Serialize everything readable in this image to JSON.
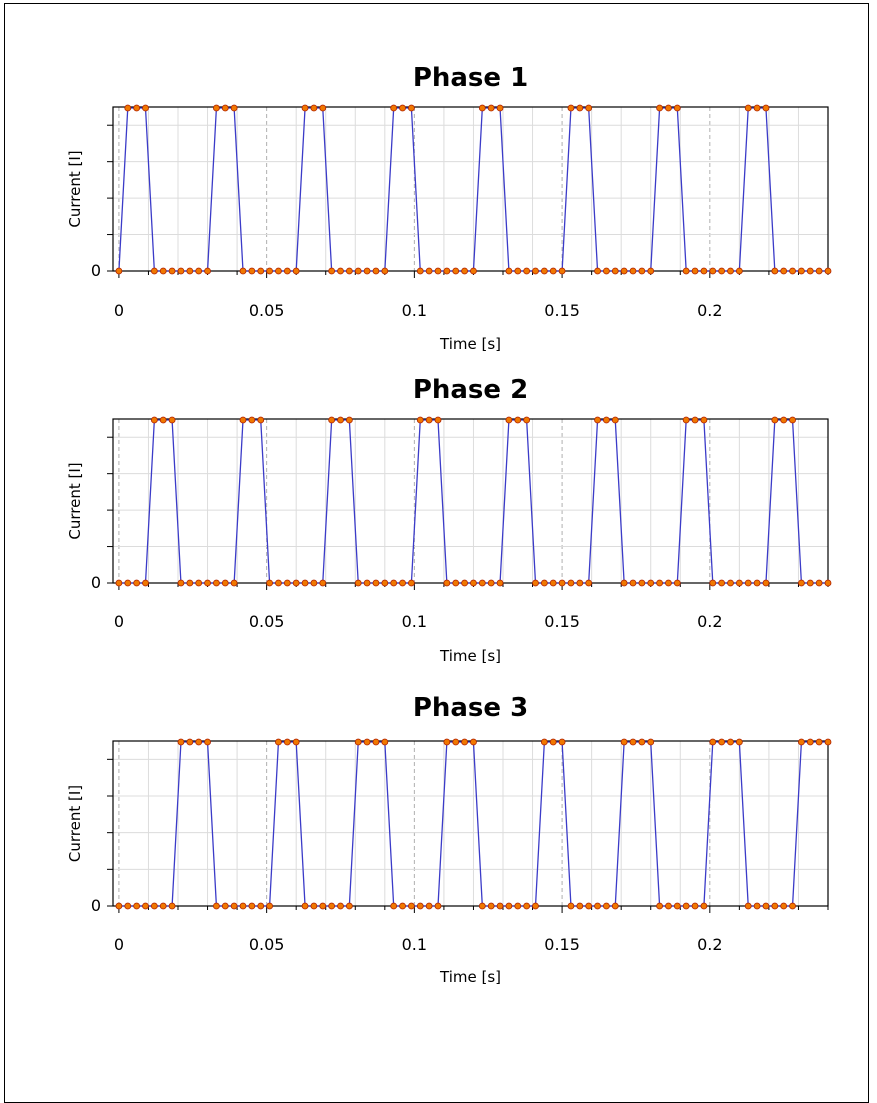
{
  "chart_data": [
    {
      "type": "line",
      "title": "Phase 1",
      "xlabel": "Time [s]",
      "ylabel": "Current [I]",
      "xlim": [
        -0.002,
        0.24
      ],
      "xticks": [
        0,
        0.05,
        0.1,
        0.15,
        0.2
      ],
      "xtick_labels": [
        "0",
        "0.05",
        "0.1",
        "0.15",
        "0.2"
      ],
      "yticks": [
        0
      ],
      "ytick_labels": [
        "0"
      ],
      "ylim": [
        0,
        1
      ],
      "pulse_start": 0.0,
      "period": 0.03,
      "pulse_count": 8,
      "sample_step": 0.003,
      "grid": true,
      "series": [
        {
          "line_color": "#3b3bc8",
          "marker_color": "#f07800",
          "marker_edge": "#b02000"
        }
      ]
    },
    {
      "type": "line",
      "title": "Phase 2",
      "xlabel": "Time [s]",
      "ylabel": "Current [I]",
      "xlim": [
        -0.002,
        0.24
      ],
      "xticks": [
        0,
        0.05,
        0.1,
        0.15,
        0.2
      ],
      "xtick_labels": [
        "0",
        "0.05",
        "0.1",
        "0.15",
        "0.2"
      ],
      "yticks": [
        0
      ],
      "ytick_labels": [
        "0"
      ],
      "ylim": [
        0,
        1
      ],
      "pulse_start": 0.01,
      "period": 0.03,
      "pulse_count": 8,
      "sample_step": 0.003,
      "grid": true,
      "series": [
        {
          "line_color": "#3b3bc8",
          "marker_color": "#f07800",
          "marker_edge": "#b02000"
        }
      ]
    },
    {
      "type": "line",
      "title": "Phase 3",
      "xlabel": "Time [s]",
      "ylabel": "Current [I]",
      "xlim": [
        -0.002,
        0.24
      ],
      "xticks": [
        0,
        0.05,
        0.1,
        0.15,
        0.2
      ],
      "xtick_labels": [
        "0",
        "0.05",
        "0.1",
        "0.15",
        "0.2"
      ],
      "yticks": [
        0
      ],
      "ytick_labels": [
        "0"
      ],
      "ylim": [
        0,
        1
      ],
      "pulse_start": 0.02,
      "period": 0.03,
      "pulse_count": 8,
      "sample_step": 0.003,
      "grid": true,
      "series": [
        {
          "line_color": "#3b3bc8",
          "marker_color": "#f07800",
          "marker_edge": "#b02000"
        }
      ]
    }
  ]
}
